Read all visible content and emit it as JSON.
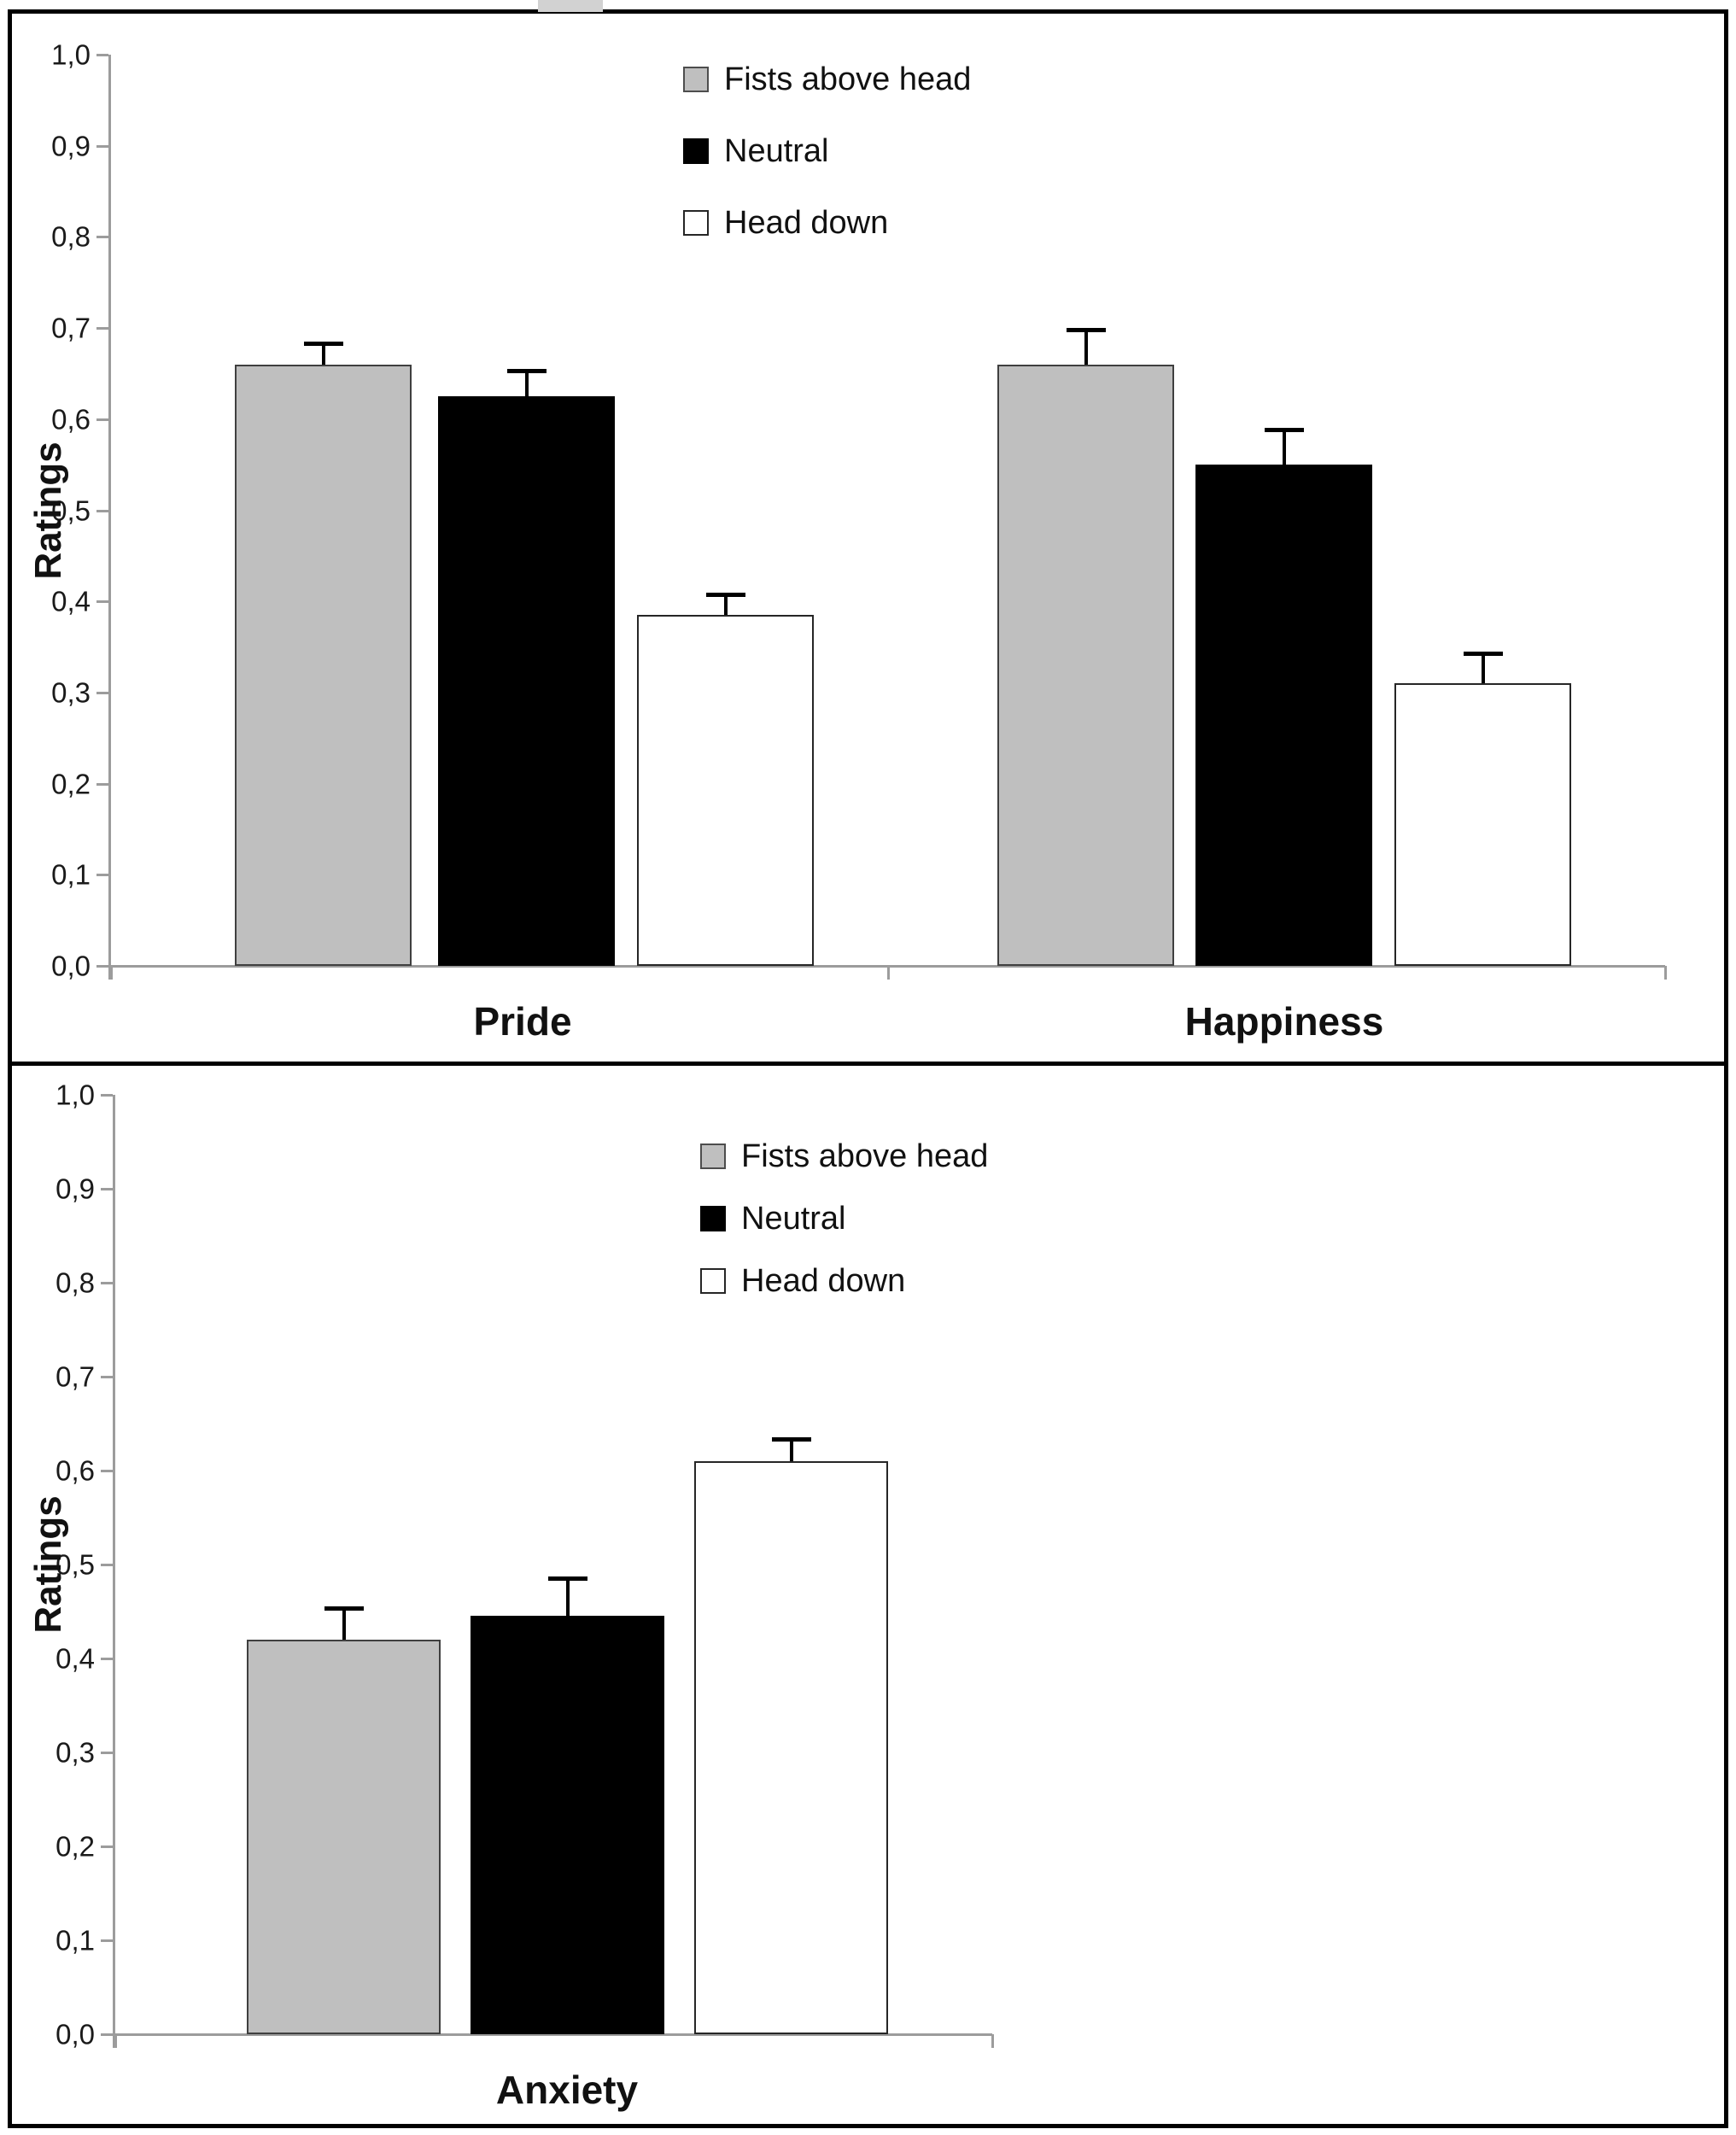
{
  "figure": {
    "background": "#ffffff",
    "border_color": "#000000",
    "axis_color": "#9c9c9c",
    "error_bar_color": "#000000"
  },
  "axis": {
    "y_label": "Ratings",
    "tick_labels": [
      "1,0",
      "0,9",
      "0,8",
      "0,7",
      "0,6",
      "0,5",
      "0,4",
      "0,3",
      "0,2",
      "0,1",
      "0,0"
    ],
    "tick_values": [
      1.0,
      0.9,
      0.8,
      0.7,
      0.6,
      0.5,
      0.4,
      0.3,
      0.2,
      0.1,
      0.0
    ],
    "decimal_separator": ","
  },
  "legend": {
    "items": [
      {
        "label": "Fists above head",
        "color": "#bfbfbf",
        "border": "#4d4d4d"
      },
      {
        "label": "Neutral",
        "color": "#000000",
        "border": "#000000"
      },
      {
        "label": "Head down",
        "color": "#ffffff",
        "border": "#262626"
      }
    ]
  },
  "chart_data": [
    {
      "type": "bar",
      "title": "",
      "xlabel": "",
      "ylabel": "Ratings",
      "ylim": [
        0,
        1
      ],
      "grid": false,
      "legend_position": "top-center-inside",
      "categories": [
        "Pride",
        "Happiness"
      ],
      "series": [
        {
          "name": "Fists above head",
          "color": "#bfbfbf",
          "border_color": "#3f3f3f",
          "values": [
            0.66,
            0.66
          ],
          "error_caps": [
            0.685,
            0.7
          ]
        },
        {
          "name": "Neutral",
          "color": "#000000",
          "border_color": "#000000",
          "values": [
            0.625,
            0.55
          ],
          "error_caps": [
            0.655,
            0.59
          ]
        },
        {
          "name": "Head down",
          "color": "#ffffff",
          "border_color": "#262626",
          "values": [
            0.385,
            0.31
          ],
          "error_caps": [
            0.41,
            0.345
          ]
        }
      ]
    },
    {
      "type": "bar",
      "title": "",
      "xlabel": "",
      "ylabel": "Ratings",
      "ylim": [
        0,
        1
      ],
      "grid": false,
      "legend_position": "top-center-inside",
      "categories": [
        "Anxiety"
      ],
      "series": [
        {
          "name": "Fists above head",
          "color": "#bfbfbf",
          "border_color": "#3f3f3f",
          "values": [
            0.42
          ],
          "error_caps": [
            0.455
          ]
        },
        {
          "name": "Neutral",
          "color": "#000000",
          "border_color": "#000000",
          "values": [
            0.445
          ],
          "error_caps": [
            0.487
          ]
        },
        {
          "name": "Head down",
          "color": "#ffffff",
          "border_color": "#262626",
          "values": [
            0.61
          ],
          "error_caps": [
            0.635
          ]
        }
      ]
    }
  ]
}
